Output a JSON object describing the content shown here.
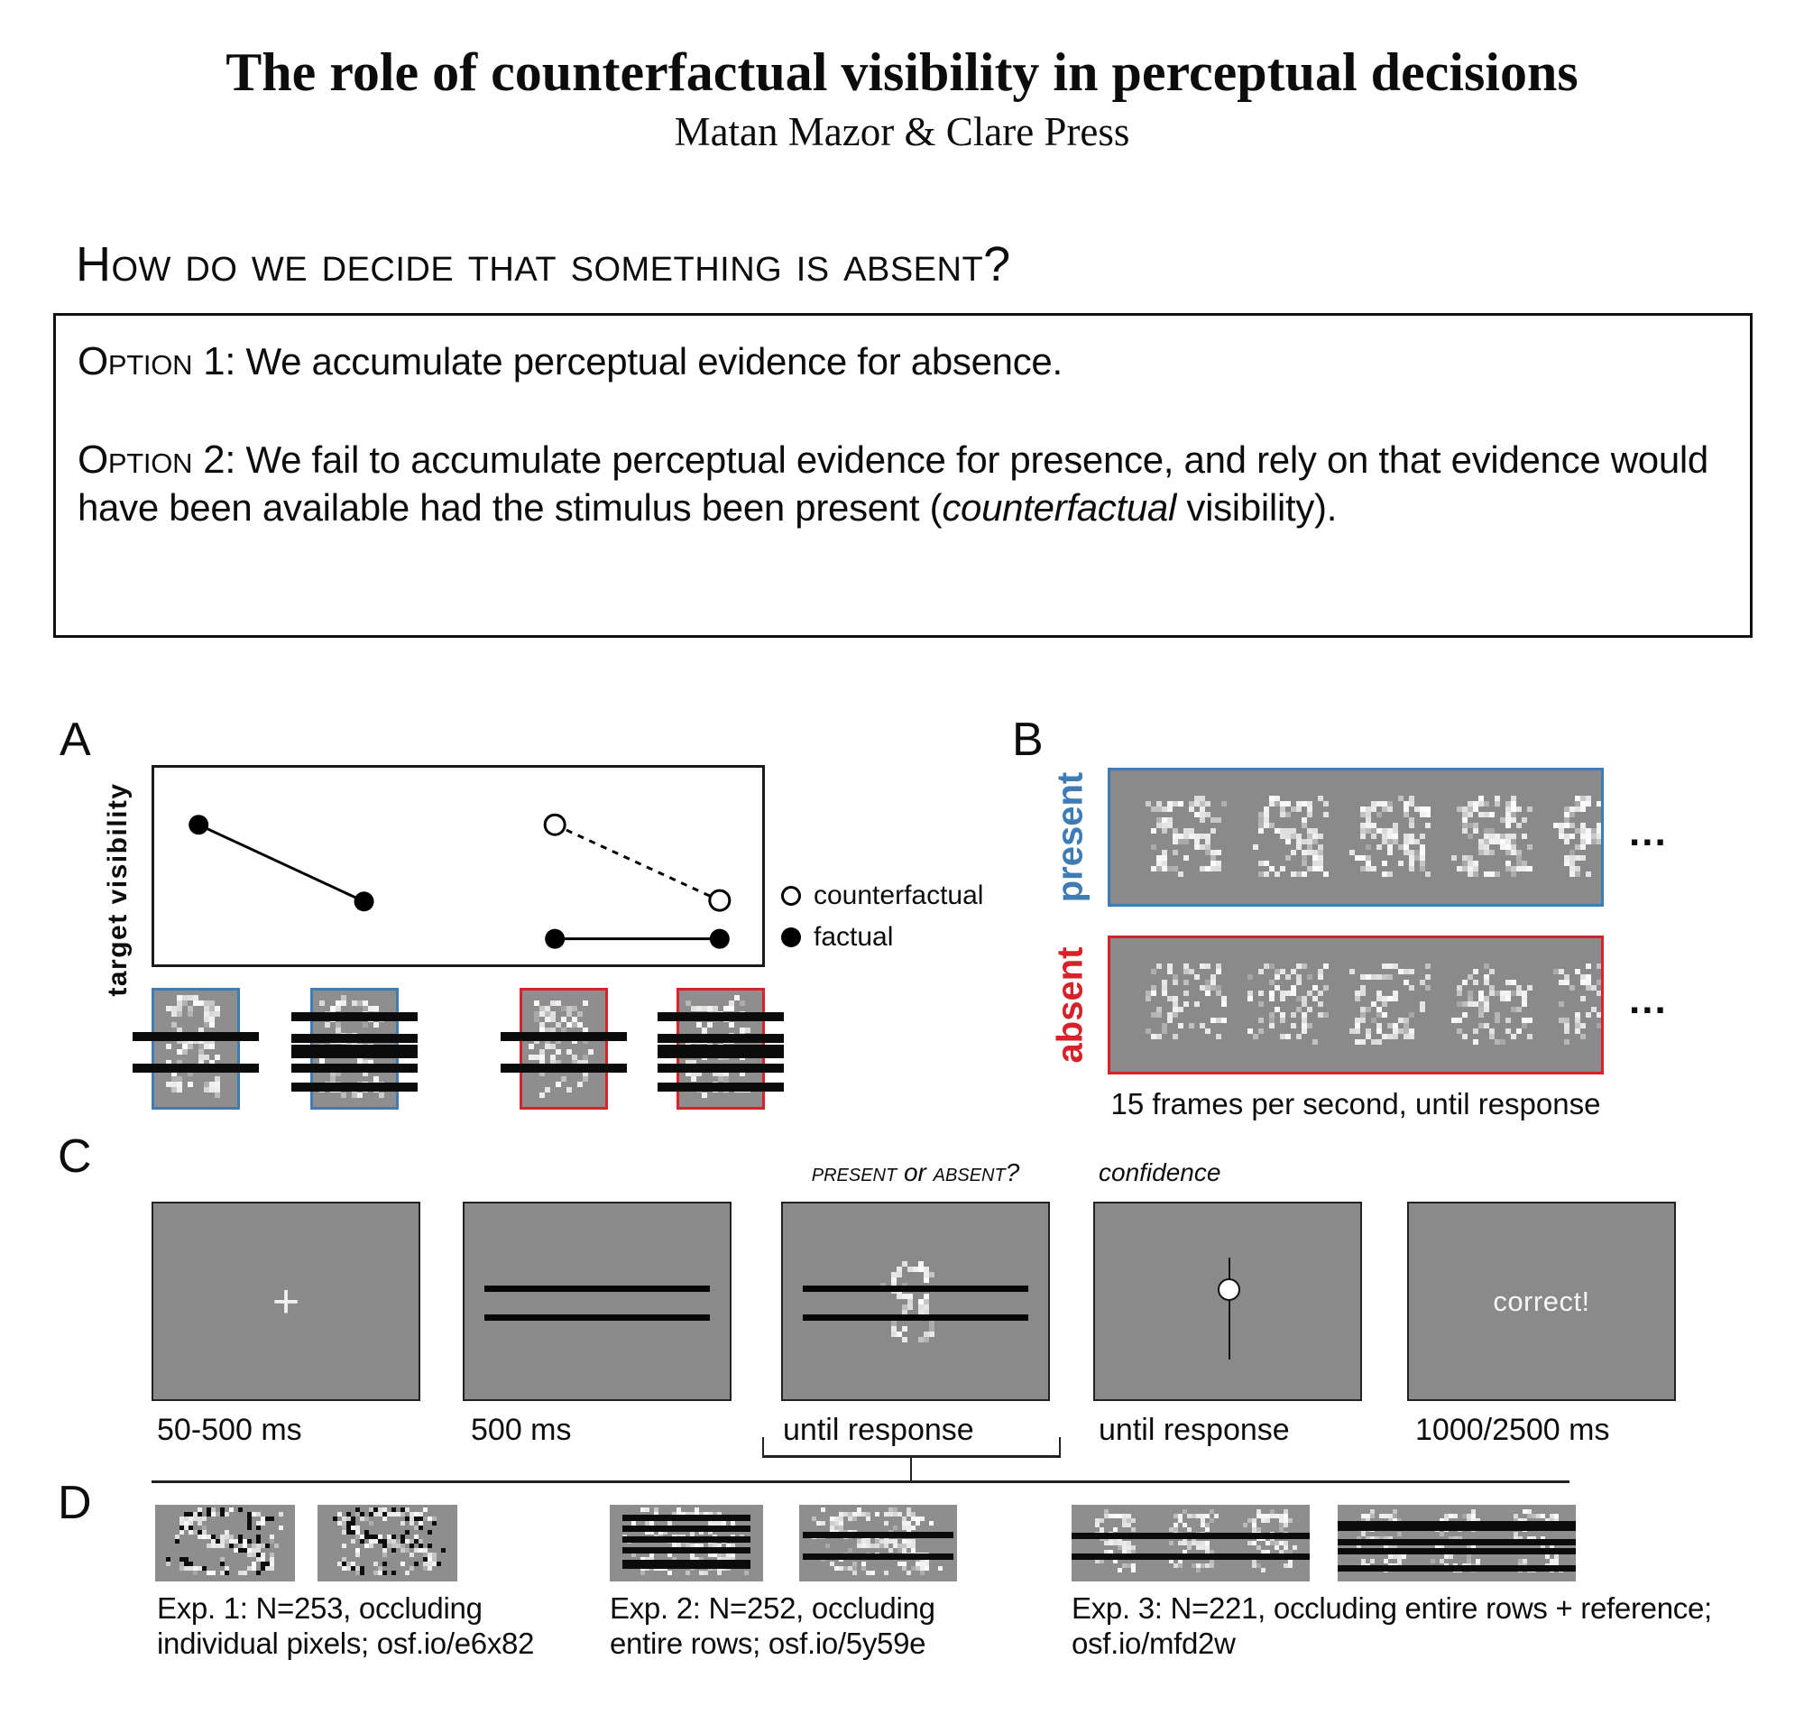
{
  "title": "The role of counterfactual visibility in perceptual decisions",
  "authors": "Matan Mazor & Clare Press",
  "question_heading": "How do we decide that something is absent?",
  "options_box": {
    "option1_label": "Option 1:",
    "option1_text": " We accumulate perceptual evidence for absence.",
    "option2_label": "Option 2:",
    "option2_text_before": " We fail to accumulate perceptual evidence for presence, and rely on that evidence would have been available had the stimulus been present (",
    "option2_italic": "counterfactual",
    "option2_text_after": " visibility)."
  },
  "colors": {
    "present_blue": "#3e7cb5",
    "absent_red": "#d6222a",
    "screen_gray": "#8a8a8a",
    "patch_gray": "#8e8e8e",
    "bar_black": "#0b0b0b"
  },
  "panelA": {
    "label": "A",
    "y_axis_label": "target visibility",
    "legend": [
      {
        "marker": "open",
        "label": "counterfactual"
      },
      {
        "marker": "filled",
        "label": "factual"
      }
    ],
    "patches": [
      {
        "border": "present_blue",
        "bars": "few",
        "signal": true,
        "seed": 11
      },
      {
        "border": "present_blue",
        "bars": "many",
        "signal": true,
        "seed": 22
      },
      {
        "border": "absent_red",
        "bars": "few",
        "signal": false,
        "seed": 33
      },
      {
        "border": "absent_red",
        "bars": "many",
        "signal": false,
        "seed": 44
      }
    ],
    "bar_patterns": {
      "few": [
        {
          "t": 0.36,
          "h": 10
        },
        {
          "t": 0.63,
          "h": 10
        }
      ],
      "many": [
        {
          "t": 0.185,
          "h": 10
        },
        {
          "t": 0.37,
          "h": 10
        },
        {
          "t": 0.465,
          "h": 15
        },
        {
          "t": 0.63,
          "h": 10
        },
        {
          "t": 0.79,
          "h": 10
        }
      ]
    }
  },
  "chart_data": {
    "type": "scatter",
    "title": "",
    "xlabel": "",
    "ylabel": "target visibility",
    "axes": {
      "frame": true,
      "ticks": false,
      "grid": false
    },
    "legend_entries": [
      "counterfactual",
      "factual"
    ],
    "points": [
      {
        "id": 0,
        "series": "factual",
        "fx": 0.073,
        "fy": 0.29
      },
      {
        "id": 1,
        "series": "factual",
        "fx": 0.345,
        "fy": 0.68
      },
      {
        "id": 2,
        "series": "counterfactual",
        "fx": 0.659,
        "fy": 0.29
      },
      {
        "id": 3,
        "series": "counterfactual",
        "fx": 0.93,
        "fy": 0.675
      },
      {
        "id": 4,
        "series": "factual",
        "fx": 0.659,
        "fy": 0.87
      },
      {
        "id": 5,
        "series": "factual",
        "fx": 0.93,
        "fy": 0.87
      }
    ],
    "segments": [
      {
        "a": 0,
        "b": 1,
        "dash": false
      },
      {
        "a": 2,
        "b": 3,
        "dash": true
      },
      {
        "a": 4,
        "b": 5,
        "dash": false
      }
    ]
  },
  "panelB": {
    "label": "B",
    "rows": [
      {
        "label": "present",
        "color_key": "present_blue",
        "signal": true,
        "n_frames": 5
      },
      {
        "label": "absent",
        "color_key": "absent_red",
        "signal": false,
        "n_frames": 5
      }
    ],
    "ellipsis": "...",
    "caption": "15 frames per second, until response"
  },
  "panelC": {
    "label": "C",
    "stimulus_title": {
      "a": "present",
      "or": " or ",
      "b": "absent?"
    },
    "confidence_title": "confidence",
    "fixation_symbol": "+",
    "screens": [
      {
        "type": "fixation",
        "duration": "50-500 ms"
      },
      {
        "type": "placeholder-lines",
        "duration": "500 ms"
      },
      {
        "type": "stimulus",
        "duration": "until response"
      },
      {
        "type": "confidence-scale",
        "duration": "until response"
      },
      {
        "type": "feedback",
        "duration": "1000/2500 ms",
        "text": "correct!"
      }
    ]
  },
  "panelD": {
    "label": "D",
    "experiments": [
      {
        "caption_line1": "Exp. 1: N=253, occluding",
        "caption_line2": "individual pixels; osf.io/e6x82",
        "patches": [
          {
            "noise": "pepper",
            "reps": 1,
            "bars": [],
            "seed": 101
          },
          {
            "noise": "pepper",
            "reps": 1,
            "bars": [],
            "seed": 102
          }
        ]
      },
      {
        "caption_line1": "Exp. 2: N=252, occluding",
        "caption_line2": "entire rows; osf.io/5y59e",
        "patches": [
          {
            "noise": "signal",
            "reps": 1,
            "bars": [
              {
                "t": 0.13,
                "h": 7
              },
              {
                "t": 0.27,
                "h": 7
              },
              {
                "t": 0.41,
                "h": 7
              },
              {
                "t": 0.55,
                "h": 7
              },
              {
                "t": 0.72,
                "h": 10
              }
            ],
            "inset": 14,
            "seed": 103
          },
          {
            "noise": "signal",
            "reps": 1,
            "bars": [
              {
                "t": 0.35,
                "h": 7
              },
              {
                "t": 0.63,
                "h": 7
              }
            ],
            "inset": 4,
            "seed": 104
          }
        ]
      },
      {
        "caption_line1": "Exp. 3: N=221, occluding entire rows + reference;",
        "caption_line2": "osf.io/mfd2w",
        "patches": [
          {
            "noise": "signal",
            "reps": 3,
            "bars": [
              {
                "t": 0.37,
                "h": 7
              },
              {
                "t": 0.63,
                "h": 7
              }
            ],
            "inset": 0,
            "seed": 105
          },
          {
            "noise": "signal",
            "reps": 3,
            "bars": [
              {
                "t": 0.21,
                "h": 11
              },
              {
                "t": 0.45,
                "h": 7
              },
              {
                "t": 0.57,
                "h": 7
              },
              {
                "t": 0.79,
                "h": 7
              }
            ],
            "inset": 0,
            "seed": 106
          }
        ]
      }
    ]
  }
}
